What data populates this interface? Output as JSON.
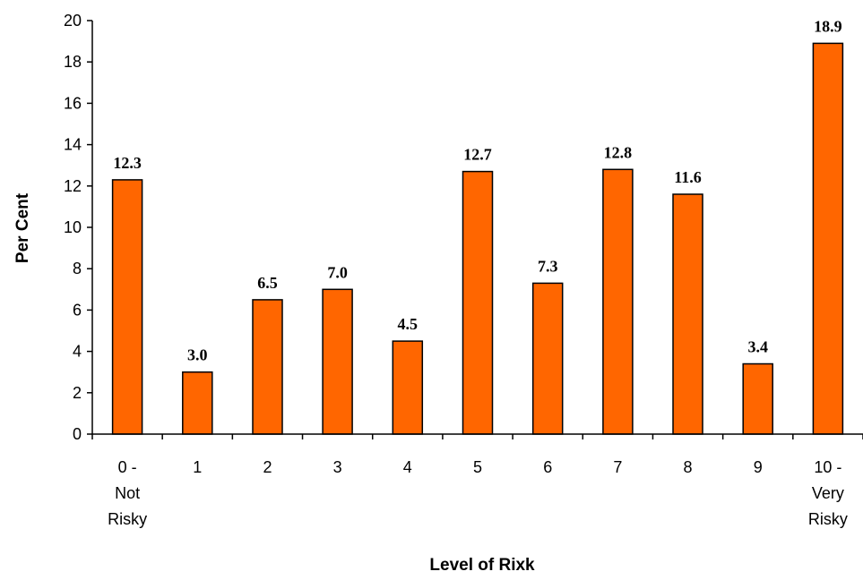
{
  "chart_data": {
    "type": "bar",
    "title": "",
    "xlabel": "Level of Rixk",
    "ylabel": "Per Cent",
    "ylim": [
      0,
      20
    ],
    "yticks": [
      0,
      2,
      4,
      6,
      8,
      10,
      12,
      14,
      16,
      18,
      20
    ],
    "grid": false,
    "bar_color": "#FF6600",
    "categories": [
      [
        "0 -",
        "Not",
        "Risky"
      ],
      [
        "1"
      ],
      [
        "2"
      ],
      [
        "3"
      ],
      [
        "4"
      ],
      [
        "5"
      ],
      [
        "6"
      ],
      [
        "7"
      ],
      [
        "8"
      ],
      [
        "9"
      ],
      [
        "10 -",
        "Very",
        "Risky"
      ]
    ],
    "values": [
      12.3,
      3.0,
      6.5,
      7.0,
      4.5,
      12.7,
      7.3,
      12.8,
      11.6,
      3.4,
      18.9
    ],
    "data_labels": [
      "12.3",
      "3.0",
      "6.5",
      "7.0",
      "4.5",
      "12.7",
      "7.3",
      "12.8",
      "11.6",
      "3.4",
      "18.9"
    ]
  }
}
